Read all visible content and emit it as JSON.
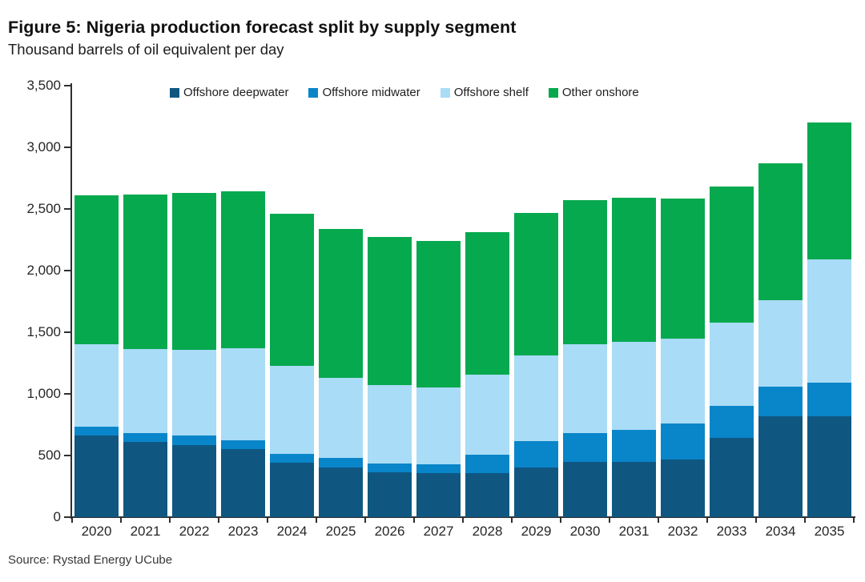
{
  "header": {
    "title": "Figure 5: Nigeria production forecast split by supply segment",
    "subtitle": "Thousand barrels of oil equivalent per day"
  },
  "footer": {
    "source": "Source: Rystad Energy UCube"
  },
  "colors": {
    "offshore_deepwater": "#0F5781",
    "offshore_midwater": "#0985C9",
    "offshore_shelf": "#A9DCF6",
    "other_onshore": "#06A94E",
    "axis": "#2f2f2f",
    "background": "#ffffff"
  },
  "chart_data": {
    "type": "bar",
    "stacked": true,
    "title": "Figure 5: Nigeria production forecast split by supply segment",
    "ylabel": "Thousand barrels of oil equivalent per day",
    "xlabel": "",
    "ylim": [
      0,
      3500
    ],
    "ytick_interval": 500,
    "ytick_labels": [
      "0",
      "500",
      "1,000",
      "1,500",
      "2,000",
      "2,500",
      "3,000",
      "3,500"
    ],
    "grid": false,
    "legend_position": "top",
    "categories": [
      "2020",
      "2021",
      "2022",
      "2023",
      "2024",
      "2025",
      "2026",
      "2027",
      "2028",
      "2029",
      "2030",
      "2031",
      "2032",
      "2033",
      "2034",
      "2035"
    ],
    "series": [
      {
        "name": "Offshore deepwater",
        "color": "#0F5781",
        "values": [
          665,
          610,
          585,
          550,
          440,
          405,
          365,
          360,
          360,
          405,
          450,
          445,
          470,
          645,
          815,
          820
        ]
      },
      {
        "name": "Offshore midwater",
        "color": "#0985C9",
        "values": [
          70,
          75,
          75,
          75,
          70,
          75,
          70,
          70,
          145,
          210,
          235,
          265,
          290,
          255,
          245,
          270
        ]
      },
      {
        "name": "Offshore shelf",
        "color": "#A9DCF6",
        "values": [
          665,
          680,
          695,
          745,
          715,
          650,
          635,
          625,
          650,
          695,
          715,
          715,
          685,
          680,
          700,
          1000
        ]
      },
      {
        "name": "Other onshore",
        "color": "#06A94E",
        "values": [
          1210,
          1255,
          1275,
          1270,
          1235,
          1210,
          1200,
          1185,
          1155,
          1155,
          1170,
          1165,
          1140,
          1105,
          1110,
          1110
        ]
      }
    ],
    "totals": [
      2610,
      2620,
      2630,
      2640,
      2460,
      2340,
      2270,
      2240,
      2310,
      2465,
      2570,
      2590,
      2585,
      2685,
      2870,
      3200
    ]
  }
}
